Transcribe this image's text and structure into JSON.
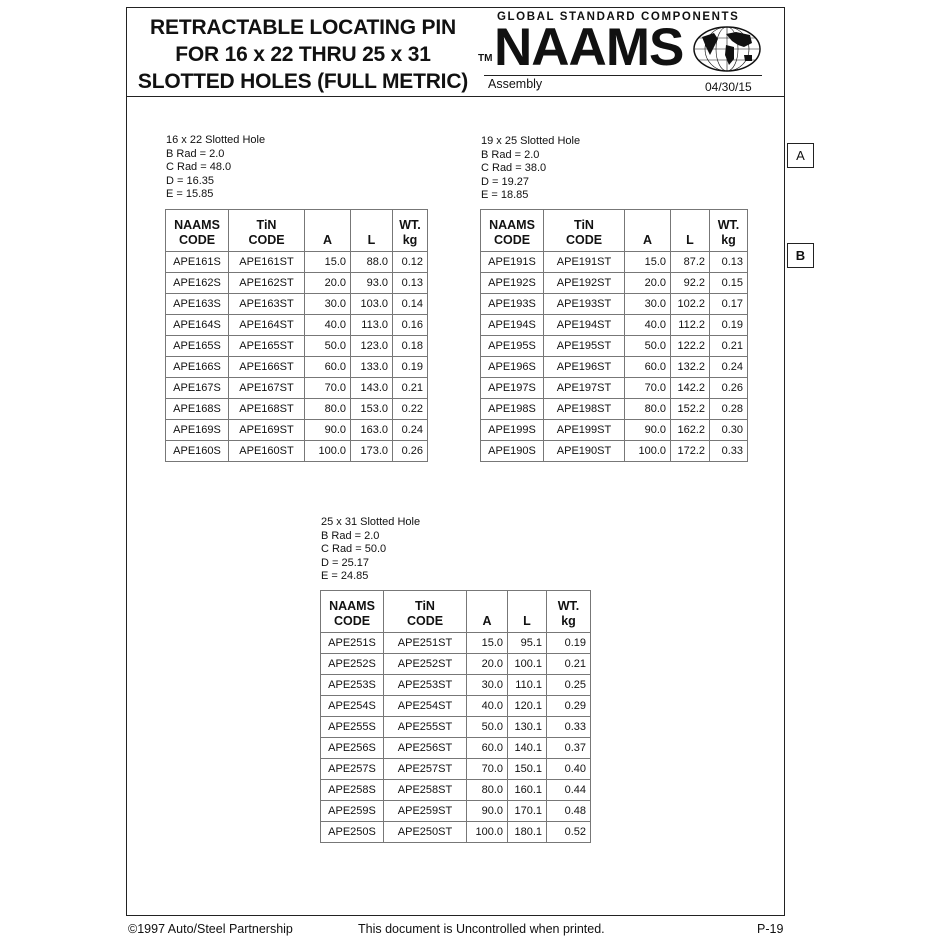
{
  "header": {
    "title_lines": [
      "RETRACTABLE LOCATING PIN",
      "FOR 16 x 22 THRU 25 x 31",
      "SLOTTED HOLES (FULL METRIC)"
    ],
    "tm": "TM",
    "logo_tagline": "GLOBAL STANDARD COMPONENTS",
    "logo": "NAAMS",
    "section": "Assembly",
    "date": "04/30/15"
  },
  "side_tabs": [
    "A",
    "B"
  ],
  "column_headers": [
    [
      "NAAMS",
      "CODE"
    ],
    [
      "TiN",
      "CODE"
    ],
    [
      "",
      "A"
    ],
    [
      "",
      "L"
    ],
    [
      "WT.",
      "kg"
    ]
  ],
  "tables": [
    {
      "specs": [
        "16 x 22 Slotted Hole",
        "B Rad = 2.0",
        "C Rad = 48.0",
        "D = 16.35",
        "E = 15.85"
      ],
      "rows": [
        [
          "APE161S",
          "APE161ST",
          "15.0",
          "88.0",
          "0.12"
        ],
        [
          "APE162S",
          "APE162ST",
          "20.0",
          "93.0",
          "0.13"
        ],
        [
          "APE163S",
          "APE163ST",
          "30.0",
          "103.0",
          "0.14"
        ],
        [
          "APE164S",
          "APE164ST",
          "40.0",
          "113.0",
          "0.16"
        ],
        [
          "APE165S",
          "APE165ST",
          "50.0",
          "123.0",
          "0.18"
        ],
        [
          "APE166S",
          "APE166ST",
          "60.0",
          "133.0",
          "0.19"
        ],
        [
          "APE167S",
          "APE167ST",
          "70.0",
          "143.0",
          "0.21"
        ],
        [
          "APE168S",
          "APE168ST",
          "80.0",
          "153.0",
          "0.22"
        ],
        [
          "APE169S",
          "APE169ST",
          "90.0",
          "163.0",
          "0.24"
        ],
        [
          "APE160S",
          "APE160ST",
          "100.0",
          "173.0",
          "0.26"
        ]
      ]
    },
    {
      "specs": [
        "19 x 25 Slotted Hole",
        "B Rad = 2.0",
        "C Rad = 38.0",
        "D = 19.27",
        "E = 18.85"
      ],
      "rows": [
        [
          "APE191S",
          "APE191ST",
          "15.0",
          "87.2",
          "0.13"
        ],
        [
          "APE192S",
          "APE192ST",
          "20.0",
          "92.2",
          "0.15"
        ],
        [
          "APE193S",
          "APE193ST",
          "30.0",
          "102.2",
          "0.17"
        ],
        [
          "APE194S",
          "APE194ST",
          "40.0",
          "112.2",
          "0.19"
        ],
        [
          "APE195S",
          "APE195ST",
          "50.0",
          "122.2",
          "0.21"
        ],
        [
          "APE196S",
          "APE196ST",
          "60.0",
          "132.2",
          "0.24"
        ],
        [
          "APE197S",
          "APE197ST",
          "70.0",
          "142.2",
          "0.26"
        ],
        [
          "APE198S",
          "APE198ST",
          "80.0",
          "152.2",
          "0.28"
        ],
        [
          "APE199S",
          "APE199ST",
          "90.0",
          "162.2",
          "0.30"
        ],
        [
          "APE190S",
          "APE190ST",
          "100.0",
          "172.2",
          "0.33"
        ]
      ]
    },
    {
      "specs": [
        "25 x 31 Slotted Hole",
        "B Rad = 2.0",
        "C Rad = 50.0",
        "D = 25.17",
        "E = 24.85"
      ],
      "rows": [
        [
          "APE251S",
          "APE251ST",
          "15.0",
          "95.1",
          "0.19"
        ],
        [
          "APE252S",
          "APE252ST",
          "20.0",
          "100.1",
          "0.21"
        ],
        [
          "APE253S",
          "APE253ST",
          "30.0",
          "110.1",
          "0.25"
        ],
        [
          "APE254S",
          "APE254ST",
          "40.0",
          "120.1",
          "0.29"
        ],
        [
          "APE255S",
          "APE255ST",
          "50.0",
          "130.1",
          "0.33"
        ],
        [
          "APE256S",
          "APE256ST",
          "60.0",
          "140.1",
          "0.37"
        ],
        [
          "APE257S",
          "APE257ST",
          "70.0",
          "150.1",
          "0.40"
        ],
        [
          "APE258S",
          "APE258ST",
          "80.0",
          "160.1",
          "0.44"
        ],
        [
          "APE259S",
          "APE259ST",
          "90.0",
          "170.1",
          "0.48"
        ],
        [
          "APE250S",
          "APE250ST",
          "100.0",
          "180.1",
          "0.52"
        ]
      ]
    }
  ],
  "footer": {
    "copyright": "©1997 Auto/Steel Partnership",
    "notice": "This document is Uncontrolled when printed.",
    "page": "P-19"
  }
}
